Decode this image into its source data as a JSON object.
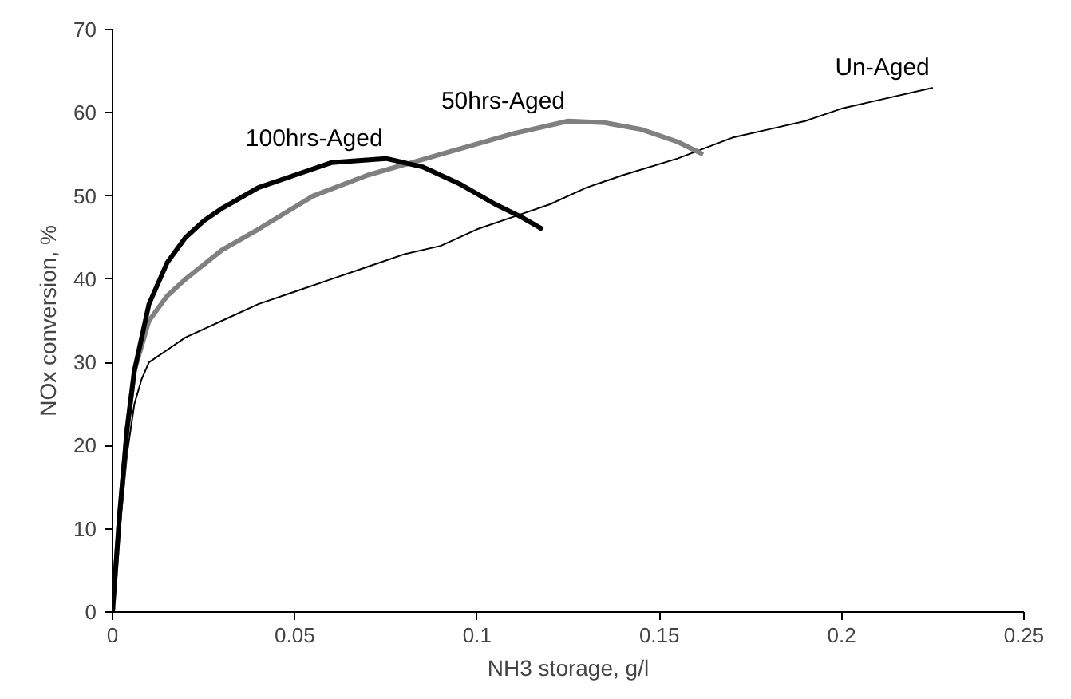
{
  "chart_data": {
    "type": "line",
    "xlabel": "NH3 storage, g/l",
    "ylabel": "NOx conversion, %",
    "xlim": [
      0,
      0.25
    ],
    "ylim": [
      0,
      70
    ],
    "xticks": [
      0,
      0.05,
      0.1,
      0.15,
      0.2,
      0.25
    ],
    "yticks": [
      0,
      10,
      20,
      30,
      40,
      50,
      60,
      70
    ],
    "grid": false,
    "marker": "none",
    "line_style": "solid",
    "series": [
      {
        "name": "Un-Aged",
        "color": "#000000",
        "x": [
          0,
          0.002,
          0.004,
          0.006,
          0.008,
          0.01,
          0.015,
          0.02,
          0.03,
          0.04,
          0.05,
          0.06,
          0.07,
          0.08,
          0.09,
          0.1,
          0.11,
          0.12,
          0.13,
          0.14,
          0.155,
          0.17,
          0.18,
          0.19,
          0.2,
          0.21,
          0.225
        ],
        "values": [
          0,
          10,
          19,
          25,
          28,
          30,
          31.5,
          33,
          35,
          37,
          38.5,
          40,
          41.5,
          43,
          44,
          46,
          47.5,
          49,
          51,
          52.5,
          54.5,
          57,
          58,
          59,
          60.5,
          61.5,
          63
        ]
      },
      {
        "name": "50hrs-Aged",
        "color": "#808080",
        "x": [
          0,
          0.002,
          0.004,
          0.006,
          0.008,
          0.01,
          0.015,
          0.02,
          0.03,
          0.04,
          0.055,
          0.07,
          0.09,
          0.11,
          0.125,
          0.135,
          0.145,
          0.155,
          0.162
        ],
        "values": [
          0,
          12,
          22,
          29,
          32,
          35,
          38,
          40,
          43.5,
          46,
          50,
          52.5,
          55,
          57.5,
          59,
          58.8,
          58,
          56.5,
          55
        ]
      },
      {
        "name": "100hrs-Aged",
        "color": "#000000",
        "x": [
          0,
          0.002,
          0.004,
          0.006,
          0.008,
          0.01,
          0.015,
          0.02,
          0.025,
          0.03,
          0.04,
          0.05,
          0.06,
          0.075,
          0.085,
          0.095,
          0.105,
          0.112,
          0.118
        ],
        "values": [
          0,
          12,
          22,
          29,
          33,
          37,
          42,
          45,
          47,
          48.5,
          51,
          52.5,
          54,
          54.5,
          53.5,
          51.5,
          49,
          47.5,
          46
        ]
      }
    ]
  }
}
